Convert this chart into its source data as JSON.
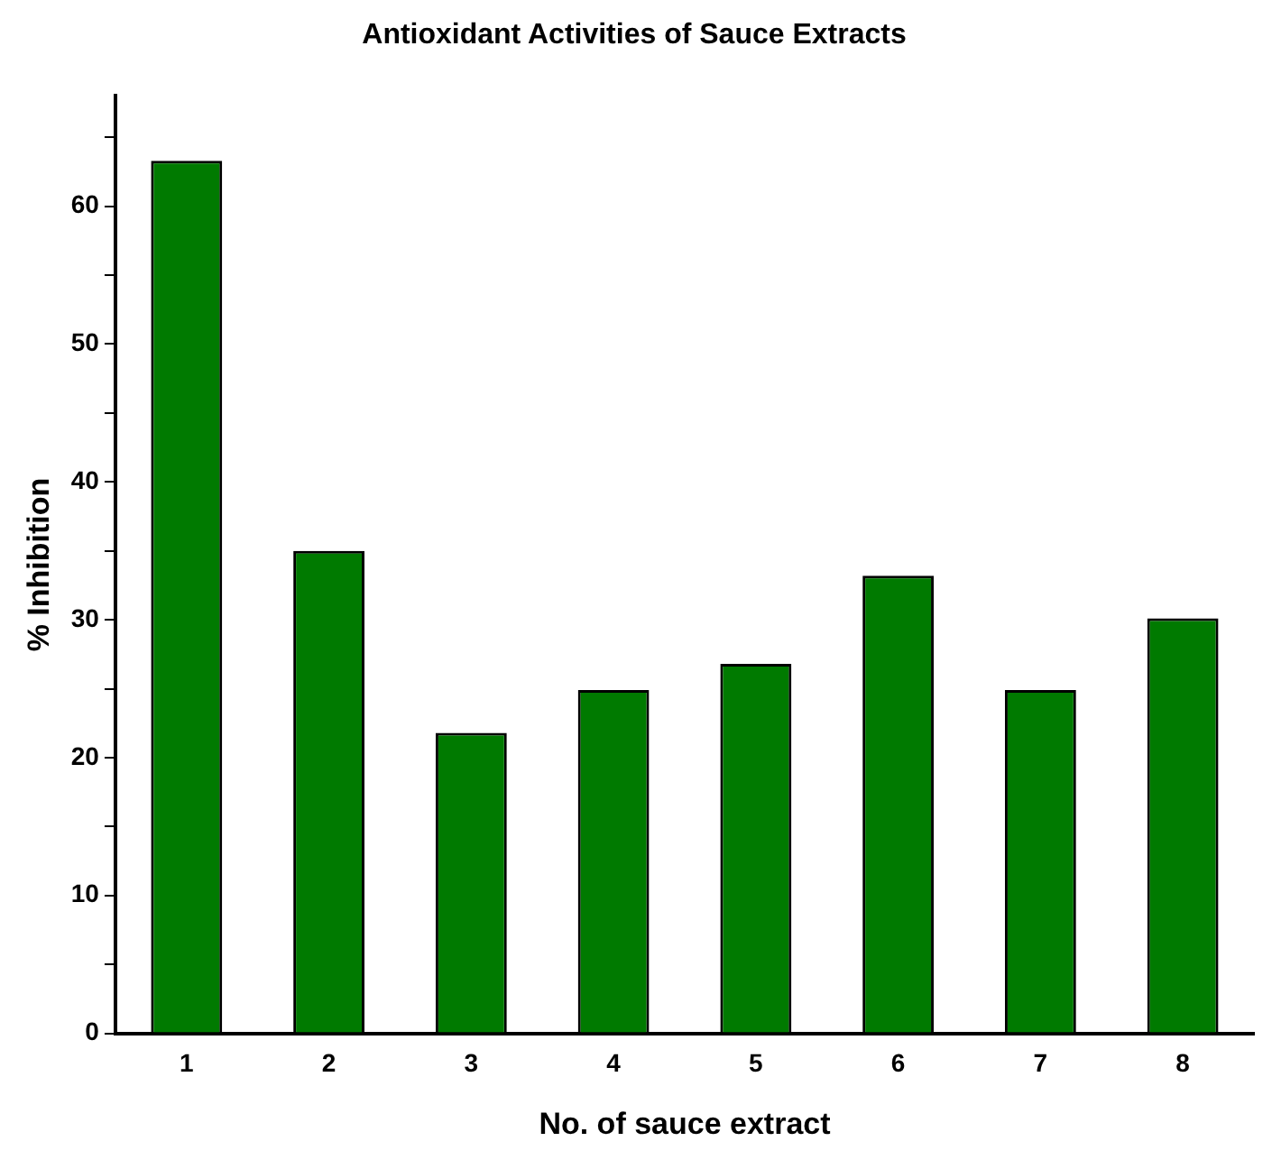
{
  "chart_data": {
    "type": "bar",
    "title": "Antioxidant Activities of Sauce Extracts",
    "xlabel": "No. of sauce extract",
    "ylabel": "% Inhibition",
    "categories": [
      "1",
      "2",
      "3",
      "4",
      "5",
      "6",
      "7",
      "8"
    ],
    "values": [
      63.3,
      35.0,
      21.8,
      24.9,
      26.8,
      33.2,
      24.9,
      30.1
    ],
    "color": "#007a00",
    "ylim": [
      0,
      68
    ],
    "yticks": [
      0,
      {
        "value": 5,
        "label": null
      },
      10,
      {
        "value": 15,
        "label": null
      },
      20,
      {
        "value": 25,
        "label": null
      },
      30,
      {
        "value": 35,
        "label": null
      },
      40,
      {
        "value": 45,
        "label": null
      },
      50,
      {
        "value": 55,
        "label": null
      },
      60,
      {
        "value": 65,
        "label": null
      }
    ],
    "grid": false,
    "legend": false
  }
}
